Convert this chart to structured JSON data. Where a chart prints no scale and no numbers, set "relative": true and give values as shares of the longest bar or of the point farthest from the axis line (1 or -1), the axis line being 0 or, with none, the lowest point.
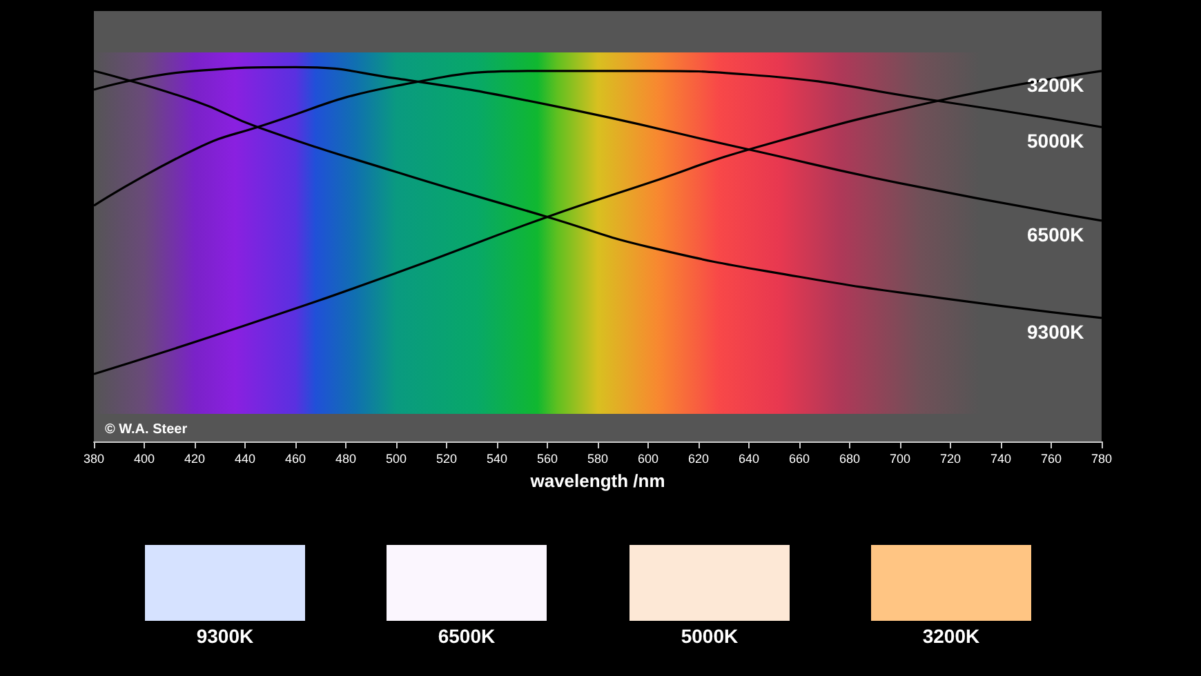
{
  "chart_data": {
    "type": "line",
    "relative": true,
    "xlabel": "wavelength /nm",
    "xlim": [
      380,
      780
    ],
    "xticks": [
      380,
      400,
      420,
      440,
      460,
      480,
      500,
      520,
      540,
      560,
      580,
      600,
      620,
      640,
      660,
      680,
      700,
      720,
      740,
      760,
      780
    ],
    "marker": "none",
    "line_style": "solid",
    "grid": false,
    "legend": false,
    "annotations": [
      "© W.A. Steer",
      "9300K",
      "6500K",
      "5000K",
      "3200K"
    ],
    "series": [
      {
        "name": "3200K",
        "color": "#000000",
        "x": [
          380,
          440,
          500,
          560,
          600,
          640,
          715,
          780
        ],
        "values": [
          0.18,
          0.31,
          0.45,
          0.6,
          0.69,
          0.78,
          0.91,
          0.99
        ]
      },
      {
        "name": "5000K",
        "color": "#000000",
        "x": [
          380,
          420,
          445,
          500,
          560,
          600,
          640,
          715,
          780
        ],
        "values": [
          0.63,
          0.78,
          0.84,
          0.95,
          0.99,
          0.99,
          0.98,
          0.91,
          0.84
        ]
      },
      {
        "name": "6500K",
        "color": "#000000",
        "x": [
          380,
          420,
          460,
          500,
          560,
          640,
          700,
          780
        ],
        "values": [
          0.94,
          0.99,
          1.0,
          0.97,
          0.9,
          0.78,
          0.69,
          0.59
        ]
      },
      {
        "name": "9300K",
        "color": "#000000",
        "x": [
          380,
          420,
          445,
          500,
          560,
          600,
          660,
          720,
          780
        ],
        "values": [
          0.99,
          0.91,
          0.84,
          0.72,
          0.6,
          0.52,
          0.44,
          0.38,
          0.33
        ]
      }
    ]
  }
}
